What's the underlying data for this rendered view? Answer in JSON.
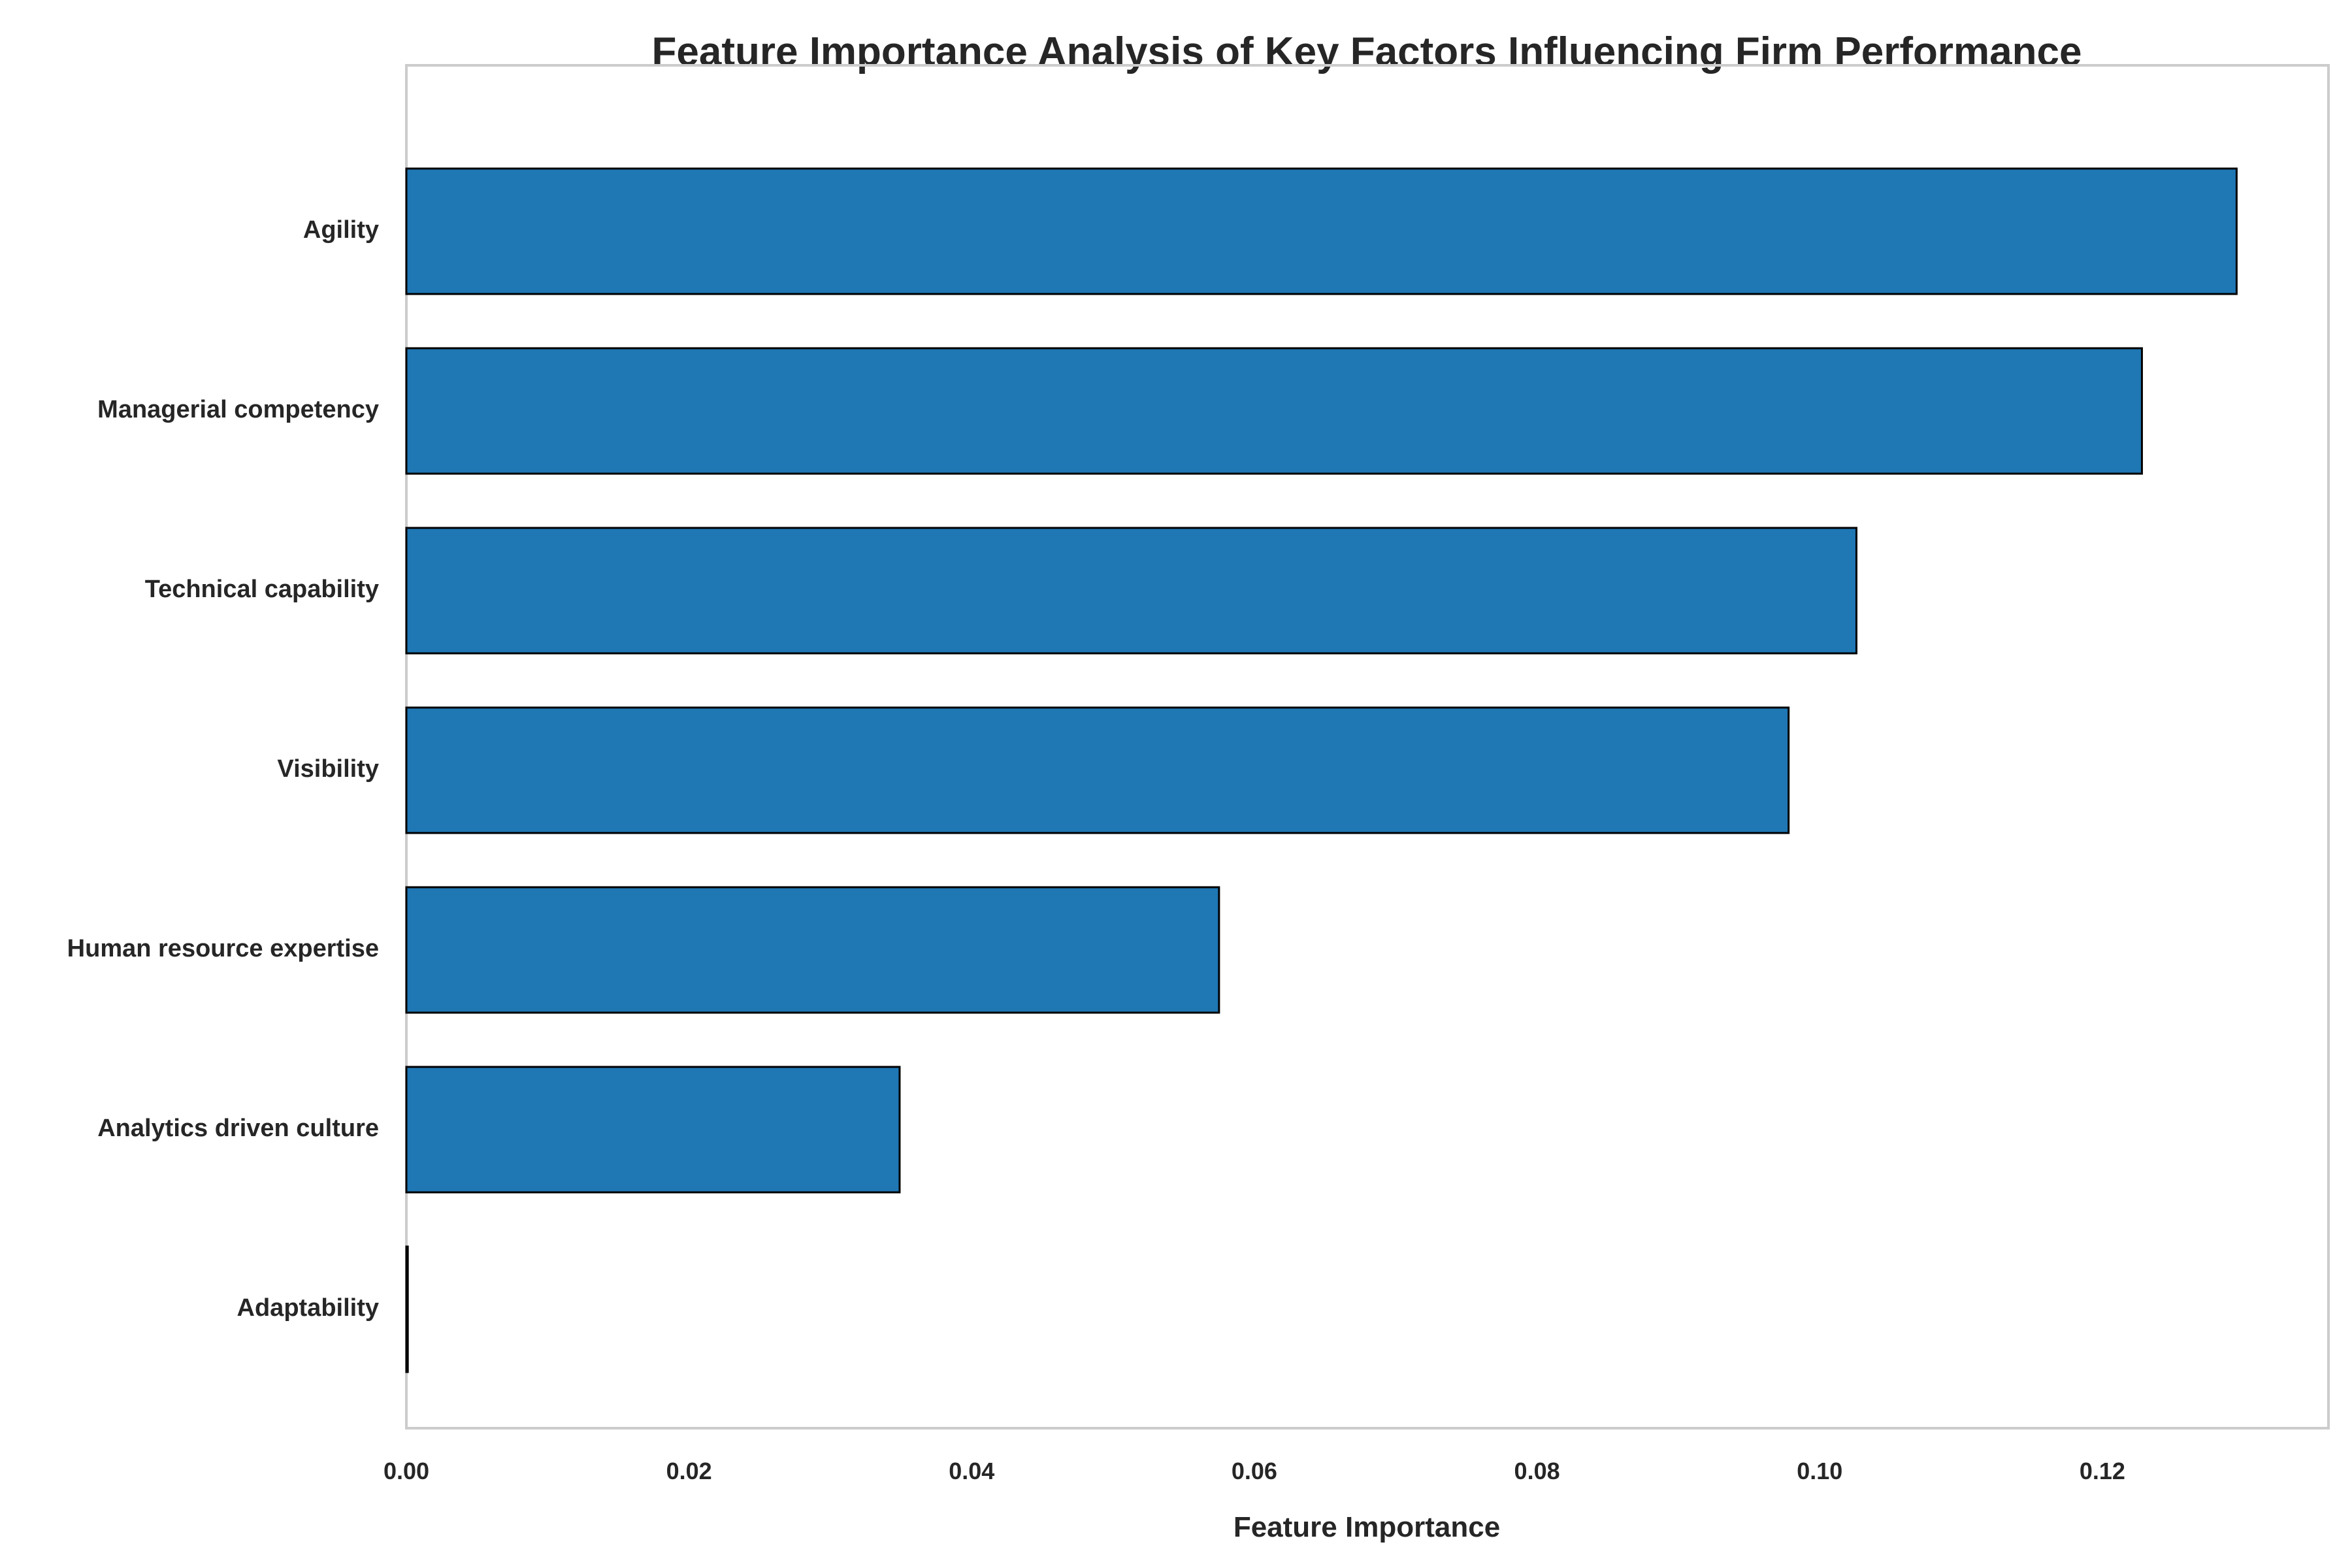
{
  "chart_data": {
    "type": "bar",
    "orientation": "horizontal",
    "title": "Feature Importance Analysis of Key Factors Influencing Firm Performance",
    "xlabel": "Feature Importance",
    "ylabel": "",
    "categories": [
      "Agility",
      "Managerial competency",
      "Technical capability",
      "Visibility",
      "Human resource expertise",
      "Analytics driven culture",
      "Adaptability"
    ],
    "values": [
      0.1295,
      0.1228,
      0.1026,
      0.0978,
      0.0575,
      0.0349,
      0.0001
    ],
    "xlim": [
      0,
      0.136
    ],
    "xticks": [
      0.0,
      0.02,
      0.04,
      0.06,
      0.08,
      0.1,
      0.12
    ],
    "xtick_labels": [
      "0.00",
      "0.02",
      "0.04",
      "0.06",
      "0.08",
      "0.10",
      "0.12"
    ],
    "grid": false,
    "legend": "none",
    "bar_color": "#1f77b4",
    "bar_edge_color": "#000000",
    "frame_color": "#cccccc"
  }
}
